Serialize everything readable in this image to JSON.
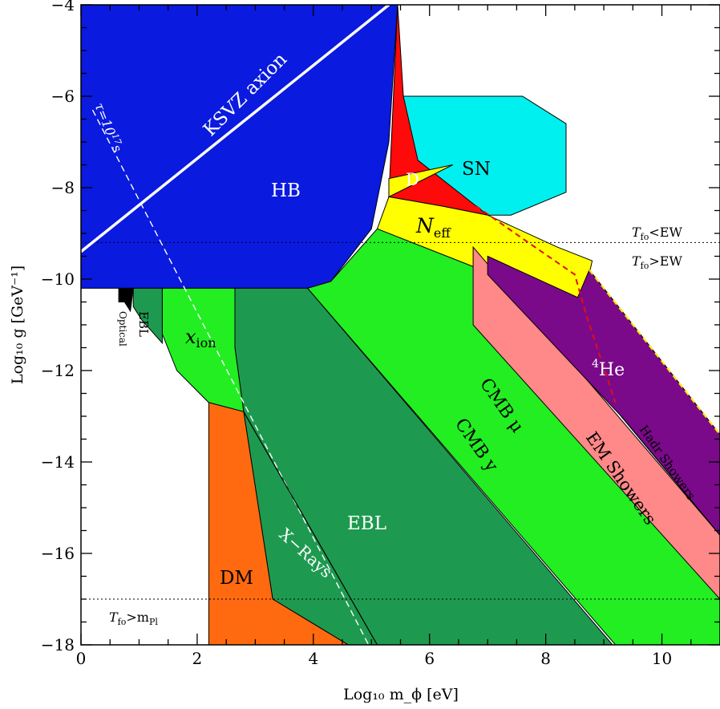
{
  "chart_data": {
    "type": "area",
    "xlabel": "Log₁₀ m_ϕ [eV]",
    "ylabel": "Log₁₀ g [GeV⁻¹]",
    "xlim": [
      0,
      11
    ],
    "ylim": [
      -18,
      -4
    ],
    "x_ticks": [
      "0",
      "2",
      "4",
      "6",
      "8",
      "10"
    ],
    "y_ticks": [
      "−4",
      "−6",
      "−8",
      "−10",
      "−12",
      "−14",
      "−16",
      "−18"
    ],
    "colors": {
      "HB": "#0a1adf",
      "SN": "#00f0f0",
      "D": "#ff0a0a",
      "Neff": "#ffff00",
      "CMB": "#22ee22",
      "EBL": "#1e9a50",
      "EM_showers": "#ff8888",
      "He4": "#7a0a8a",
      "DM": "#ff6a10"
    },
    "regions": [
      {
        "name": "HB",
        "label": "HB",
        "polygon": [
          [
            0,
            -4
          ],
          [
            5.45,
            -4
          ],
          [
            5.3,
            -7
          ],
          [
            5.0,
            -8.9
          ],
          [
            4.3,
            -10.05
          ],
          [
            3.9,
            -10.2
          ],
          [
            0,
            -10.2
          ]
        ]
      },
      {
        "name": "SN",
        "label": "SN",
        "polygon": [
          [
            5.45,
            -6.0
          ],
          [
            7.6,
            -6.0
          ],
          [
            8.35,
            -6.6
          ],
          [
            8.35,
            -8.1
          ],
          [
            7.4,
            -8.6
          ],
          [
            5.9,
            -8.6
          ],
          [
            5.45,
            -7.5
          ]
        ]
      },
      {
        "name": "D",
        "label": "D",
        "polygon": [
          [
            5.45,
            -4
          ],
          [
            5.55,
            -6.0
          ],
          [
            5.8,
            -7.4
          ],
          [
            7.0,
            -8.6
          ],
          [
            6.2,
            -8.4
          ],
          [
            5.3,
            -8.2
          ]
        ]
      },
      {
        "name": "Neff",
        "label": "N_eff",
        "polygon": [
          [
            5.3,
            -7.8
          ],
          [
            6.4,
            -7.5
          ],
          [
            5.3,
            -8.2
          ],
          [
            6.2,
            -8.4
          ],
          [
            7.0,
            -8.6
          ],
          [
            8.2,
            -9.3
          ],
          [
            8.8,
            -9.6
          ],
          [
            8.55,
            -11.0
          ],
          [
            7.8,
            -10.3
          ],
          [
            5.1,
            -8.9
          ],
          [
            5.3,
            -8.2
          ]
        ]
      },
      {
        "name": "CMB",
        "label": "CMB",
        "polygon": [
          [
            5.1,
            -8.9
          ],
          [
            6.9,
            -9.8
          ],
          [
            11,
            -15.8
          ],
          [
            11,
            -18
          ],
          [
            9.2,
            -18
          ],
          [
            3.9,
            -10.2
          ],
          [
            4.3,
            -10.05
          ]
        ]
      },
      {
        "name": "EM_showers",
        "label": "EM Showers",
        "polygon": [
          [
            6.75,
            -9.3
          ],
          [
            11,
            -15.6
          ],
          [
            11,
            -17.0
          ],
          [
            6.75,
            -11.0
          ]
        ]
      },
      {
        "name": "He4",
        "label": "⁴He",
        "polygon": [
          [
            7.0,
            -9.5
          ],
          [
            8.55,
            -10.4
          ],
          [
            8.75,
            -9.8
          ],
          [
            11,
            -13.4
          ],
          [
            11,
            -15.6
          ],
          [
            9.3,
            -13.0
          ],
          [
            7.0,
            -9.9
          ]
        ]
      },
      {
        "name": "EBL_big",
        "label": "EBL",
        "polygon": [
          [
            2.65,
            -10.2
          ],
          [
            3.9,
            -10.2
          ],
          [
            9.15,
            -18
          ],
          [
            4.6,
            -18
          ],
          [
            3.3,
            -17.0
          ],
          [
            2.8,
            -12.9
          ],
          [
            2.65,
            -11.5
          ]
        ]
      },
      {
        "name": "xion",
        "label": "x_ion",
        "polygon": [
          [
            1.4,
            -10.2
          ],
          [
            2.65,
            -10.2
          ],
          [
            2.65,
            -11.5
          ],
          [
            2.8,
            -12.9
          ],
          [
            2.2,
            -12.7
          ],
          [
            1.65,
            -12.0
          ],
          [
            1.4,
            -11.2
          ]
        ]
      },
      {
        "name": "EBL_small",
        "label": "EBL",
        "polygon": [
          [
            0.9,
            -10.2
          ],
          [
            1.4,
            -10.2
          ],
          [
            1.4,
            -11.4
          ],
          [
            1.05,
            -10.9
          ],
          [
            0.9,
            -10.6
          ]
        ]
      },
      {
        "name": "Optical",
        "label": "Optical",
        "polygon": [
          [
            0.65,
            -10.2
          ],
          [
            0.9,
            -10.2
          ],
          [
            0.85,
            -10.7
          ],
          [
            0.75,
            -10.5
          ],
          [
            0.65,
            -10.5
          ]
        ]
      },
      {
        "name": "DM",
        "label": "DM",
        "polygon": [
          [
            2.2,
            -12.7
          ],
          [
            2.8,
            -12.9
          ],
          [
            3.3,
            -17.0
          ],
          [
            4.6,
            -18
          ],
          [
            2.2,
            -18
          ]
        ]
      }
    ],
    "curves": [
      {
        "name": "KSVZ axion",
        "label": "KSVZ axion",
        "style": "solid-white",
        "points": [
          [
            0,
            -9.4
          ],
          [
            5.3,
            -4.0
          ]
        ]
      },
      {
        "name": "lifetime",
        "label": "τ=10¹⁷s",
        "style": "dashed-white",
        "points": [
          [
            0.2,
            -6.3
          ],
          [
            4.95,
            -18
          ]
        ]
      },
      {
        "name": "Hadr Showers edge",
        "label": "Hadr Showers",
        "style": "solid-black",
        "points": [
          [
            9.3,
            -13.0
          ],
          [
            11,
            -15.6
          ]
        ]
      },
      {
        "name": "X-Rays edge",
        "label": "X−Rays",
        "style": "solid-black",
        "points": [
          [
            2.8,
            -12.9
          ],
          [
            5.1,
            -18
          ]
        ]
      },
      {
        "name": "red dashed",
        "style": "dashed-red",
        "points": [
          [
            6.8,
            -8.4
          ],
          [
            7.7,
            -9.2
          ],
          [
            8.5,
            -9.9
          ],
          [
            8.7,
            -10.8
          ],
          [
            9.2,
            -12.7
          ]
        ]
      },
      {
        "name": "yellow dashed",
        "style": "dashed-yellow",
        "points": [
          [
            8.75,
            -9.8
          ],
          [
            11,
            -13.4
          ]
        ]
      }
    ],
    "horizontal_lines": [
      {
        "y": -9.2,
        "label_above": "T_fo<EW",
        "label_below": "T_fo>EW"
      },
      {
        "y": -17.0,
        "label_below": "T_fo>m_Pl"
      }
    ],
    "labels": {
      "hb": "HB",
      "sn": "SN",
      "d": "D",
      "neff": "N",
      "neff_sub": "eff",
      "cmb_mu": "CMB μ",
      "cmb_y": "CMB y",
      "em": "EM Showers",
      "hadr": "Hadr Showers",
      "he": "He",
      "he_sup": "4",
      "ebl": "EBL",
      "ebl_small": "EBL",
      "optical": "Optical",
      "xion": "x",
      "xion_sub": "ion",
      "dm": "DM",
      "xrays": "X−Rays",
      "ksvz": "KSVZ axion",
      "tau": "τ=10",
      "tau_exp": "17",
      "tau_unit": "s",
      "tfo": "T",
      "tfo_sub": "fo",
      "ew_lt": "<EW",
      "ew_gt": ">EW",
      "mpl_gt": ">m",
      "mpl_sub": "Pl"
    }
  }
}
